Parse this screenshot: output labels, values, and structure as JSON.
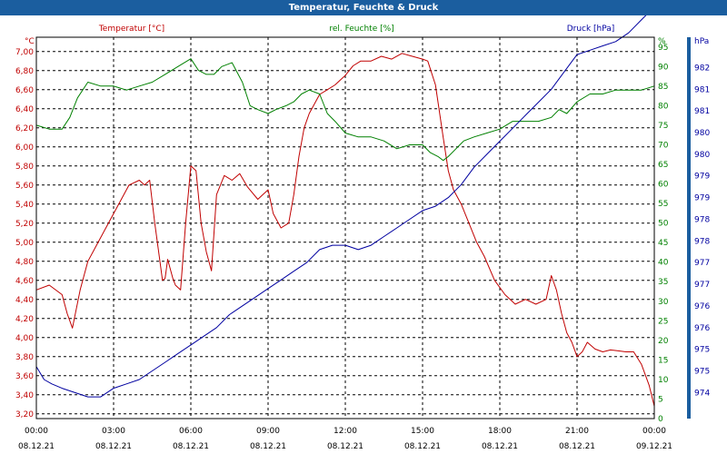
{
  "chart_data": {
    "type": "line",
    "title": "Temperatur, Feuchte & Druck",
    "x_ticks": [
      {
        "time": "00:00",
        "date": "08.12.21"
      },
      {
        "time": "03:00",
        "date": "08.12.21"
      },
      {
        "time": "06:00",
        "date": "08.12.21"
      },
      {
        "time": "09:00",
        "date": "08.12.21"
      },
      {
        "time": "12:00",
        "date": "08.12.21"
      },
      {
        "time": "15:00",
        "date": "08.12.21"
      },
      {
        "time": "18:00",
        "date": "08.12.21"
      },
      {
        "time": "21:00",
        "date": "08.12.21"
      },
      {
        "time": "00:00",
        "date": "09.12.21"
      }
    ],
    "xlim": [
      0,
      24
    ],
    "grid": true,
    "axes": {
      "temp": {
        "unit": "°C",
        "color": "#c00000",
        "ylim": [
          3.15,
          7.15
        ],
        "ticks": [
          "3,20",
          "3,40",
          "3,60",
          "3,80",
          "4,00",
          "4,20",
          "4,40",
          "4,60",
          "4,80",
          "5,00",
          "5,20",
          "5,40",
          "5,60",
          "5,80",
          "6,00",
          "6,20",
          "6,40",
          "6,60",
          "6,80",
          "7,00"
        ],
        "tick_values": [
          3.2,
          3.4,
          3.6,
          3.8,
          4.0,
          4.2,
          4.4,
          4.6,
          4.8,
          5.0,
          5.2,
          5.4,
          5.6,
          5.8,
          6.0,
          6.2,
          6.4,
          6.6,
          6.8,
          7.0
        ]
      },
      "hum": {
        "unit": "%",
        "color": "#008000",
        "ylim": [
          0,
          97.5
        ],
        "ticks": [
          "0",
          "5",
          "10",
          "15",
          "20",
          "25",
          "30",
          "35",
          "40",
          "45",
          "50",
          "55",
          "60",
          "65",
          "70",
          "75",
          "80",
          "85",
          "90",
          "95"
        ],
        "tick_values": [
          0,
          5,
          10,
          15,
          20,
          25,
          30,
          35,
          40,
          45,
          50,
          55,
          60,
          65,
          70,
          75,
          80,
          85,
          90,
          95
        ]
      },
      "press": {
        "unit": "hPa",
        "color": "#0000a0",
        "ylim": [
          973.4,
          982.2
        ],
        "ticks": [
          "974",
          "975",
          "975",
          "976",
          "976",
          "977",
          "977",
          "978",
          "978",
          "979",
          "979",
          "980",
          "980",
          "981",
          "981",
          "982"
        ],
        "tick_values": [
          974.0,
          974.5,
          975.0,
          975.5,
          976.0,
          976.5,
          977.0,
          977.5,
          978.0,
          978.5,
          979.0,
          979.5,
          980.0,
          980.5,
          981.0,
          981.5
        ]
      }
    },
    "series": [
      {
        "name": "Temperatur [°C]",
        "axis": "temp",
        "color": "#c00000",
        "x": [
          0,
          0.5,
          1,
          1.2,
          1.4,
          1.7,
          2,
          2.3,
          2.7,
          3,
          3.3,
          3.6,
          4,
          4.2,
          4.4,
          4.6,
          4.8,
          4.9,
          5,
          5.1,
          5.3,
          5.4,
          5.6,
          5.8,
          6,
          6.2,
          6.4,
          6.6,
          6.8,
          7,
          7.3,
          7.6,
          7.9,
          8.2,
          8.6,
          9,
          9.2,
          9.5,
          9.8,
          10,
          10.2,
          10.4,
          10.6,
          10.8,
          11,
          11.3,
          11.6,
          12,
          12.3,
          12.6,
          13,
          13.4,
          13.8,
          14.2,
          14.6,
          15,
          15.2,
          15.5,
          15.8,
          16,
          16.2,
          16.5,
          16.8,
          17.1,
          17.4,
          17.8,
          18.2,
          18.6,
          19,
          19.4,
          19.8,
          20,
          20.2,
          20.4,
          20.6,
          20.8,
          21,
          21.2,
          21.4,
          21.7,
          22,
          22.3,
          22.6,
          22.9,
          23.2,
          23.5,
          23.8,
          24
        ],
        "y": [
          4.5,
          4.55,
          4.45,
          4.25,
          4.1,
          4.5,
          4.8,
          4.95,
          5.15,
          5.3,
          5.45,
          5.6,
          5.65,
          5.6,
          5.65,
          5.2,
          4.8,
          4.6,
          4.62,
          4.82,
          4.62,
          4.55,
          4.5,
          5.2,
          5.8,
          5.75,
          5.2,
          4.9,
          4.7,
          5.5,
          5.7,
          5.65,
          5.72,
          5.58,
          5.45,
          5.55,
          5.3,
          5.15,
          5.2,
          5.5,
          5.9,
          6.2,
          6.35,
          6.45,
          6.55,
          6.6,
          6.65,
          6.75,
          6.85,
          6.9,
          6.9,
          6.95,
          6.92,
          6.98,
          6.95,
          6.92,
          6.9,
          6.65,
          6.1,
          5.75,
          5.55,
          5.4,
          5.2,
          5.0,
          4.85,
          4.6,
          4.45,
          4.35,
          4.4,
          4.35,
          4.4,
          4.65,
          4.5,
          4.25,
          4.05,
          3.95,
          3.8,
          3.85,
          3.95,
          3.88,
          3.85,
          3.87,
          3.86,
          3.85,
          3.85,
          3.72,
          3.5,
          3.28
        ]
      },
      {
        "name": "rel. Feuchte [%]",
        "axis": "hum",
        "color": "#008000",
        "x": [
          0,
          0.5,
          1,
          1.3,
          1.6,
          2,
          2.5,
          3,
          3.5,
          4,
          4.5,
          5,
          5.5,
          6,
          6.3,
          6.6,
          6.9,
          7.2,
          7.6,
          8,
          8.3,
          8.6,
          9,
          9.3,
          9.7,
          10,
          10.3,
          10.6,
          11,
          11.3,
          11.6,
          12,
          12.5,
          13,
          13.5,
          14,
          14.5,
          15,
          15.3,
          15.6,
          15.8,
          16,
          16.3,
          16.6,
          17,
          17.5,
          18,
          18.5,
          19,
          19.5,
          20,
          20.3,
          20.6,
          21,
          21.5,
          22,
          22.5,
          23,
          23.5,
          24
        ],
        "y": [
          75,
          74,
          74,
          77,
          82,
          86,
          85,
          85,
          84,
          85,
          86,
          88,
          90,
          92,
          89,
          88,
          88,
          90,
          91,
          86,
          80,
          79,
          78,
          79,
          80,
          81,
          83,
          84,
          83,
          78,
          76,
          73,
          72,
          72,
          71,
          69,
          70,
          70,
          68,
          67,
          66,
          67,
          69,
          71,
          72,
          73,
          74,
          76,
          76,
          76,
          77,
          79,
          78,
          81,
          83,
          83,
          84,
          84,
          84,
          85
        ]
      },
      {
        "name": "Druck [hPa]",
        "axis": "press",
        "color": "#0000a0",
        "x": [
          0,
          0.3,
          0.6,
          1,
          1.5,
          2,
          2.5,
          3,
          3.5,
          4,
          4.5,
          5,
          5.5,
          6,
          6.5,
          7,
          7.5,
          8,
          8.5,
          9,
          9.5,
          10,
          10.5,
          11,
          11.5,
          12,
          12.5,
          13,
          13.5,
          14,
          14.5,
          15,
          15.5,
          16,
          16.5,
          17,
          17.5,
          18,
          18.5,
          19,
          19.5,
          20,
          20.5,
          21,
          21.5,
          22,
          22.5,
          23,
          23.5,
          24
        ],
        "y": [
          974.6,
          974.3,
          974.2,
          974.1,
          974.0,
          973.9,
          973.9,
          974.1,
          974.2,
          974.3,
          974.5,
          974.7,
          974.9,
          975.1,
          975.3,
          975.5,
          975.8,
          976.0,
          976.2,
          976.4,
          976.6,
          976.8,
          977.0,
          977.3,
          977.4,
          977.4,
          977.3,
          977.4,
          977.6,
          977.8,
          978.0,
          978.2,
          978.3,
          978.5,
          978.8,
          979.2,
          979.5,
          979.8,
          980.1,
          980.4,
          980.7,
          981.0,
          981.4,
          981.8,
          981.9,
          982.0,
          982.1,
          982.3,
          982.6,
          982.9
        ]
      }
    ]
  }
}
